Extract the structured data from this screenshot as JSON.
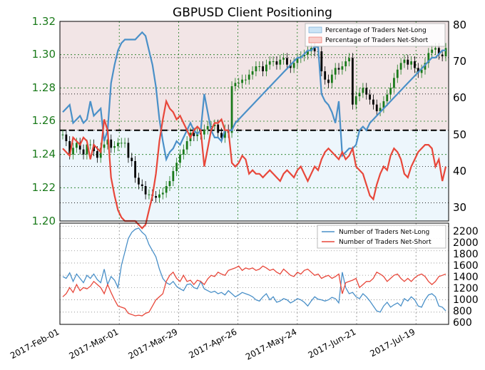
{
  "chart_data": [
    {
      "type": "line",
      "title": "GBPUSD Client Positioning",
      "left_axis": {
        "ticks": [
          "1.20",
          "1.22",
          "1.24",
          "1.26",
          "1.28",
          "1.30",
          "1.32"
        ],
        "ylim": [
          1.2,
          1.32
        ],
        "color": "#1a7a1a"
      },
      "right_axis": {
        "ticks": [
          "30",
          "40",
          "50",
          "60",
          "70",
          "80"
        ],
        "ylim": [
          25,
          80
        ]
      },
      "reference_line": 50,
      "background_split": 50,
      "grid": true,
      "legend": {
        "position": "top-right",
        "items": [
          "Percentage of Traders Net-Long",
          "Percentage of Traders Net-Short"
        ]
      },
      "colors": {
        "price_up": "#1a7a1a",
        "price_down": "#000000",
        "net_long": "#4a90c8",
        "net_short": "#e8473a",
        "long_fill": "#cce4f6",
        "short_fill": "#f9d0cc"
      },
      "price_close": [
        1.252,
        1.248,
        1.24,
        1.244,
        1.247,
        1.243,
        1.24,
        1.246,
        1.246,
        1.242,
        1.238,
        1.244,
        1.246,
        1.249,
        1.244,
        1.245,
        1.247,
        1.247,
        1.247,
        1.238,
        1.236,
        1.226,
        1.222,
        1.221,
        1.216,
        1.216,
        1.215,
        1.214,
        1.216,
        1.217,
        1.221,
        1.224,
        1.23,
        1.235,
        1.24,
        1.243,
        1.248,
        1.253,
        1.251,
        1.253,
        1.252,
        1.255,
        1.257,
        1.257,
        1.258,
        1.253,
        1.25,
        1.255,
        1.253,
        1.281,
        1.283,
        1.283,
        1.285,
        1.285,
        1.288,
        1.29,
        1.293,
        1.293,
        1.29,
        1.294,
        1.296,
        1.296,
        1.294,
        1.297,
        1.298,
        1.294,
        1.292,
        1.295,
        1.298,
        1.299,
        1.3,
        1.302,
        1.304,
        1.302,
        1.302,
        1.29,
        1.285,
        1.283,
        1.288,
        1.292,
        1.291,
        1.293,
        1.296,
        1.298,
        1.27,
        1.275,
        1.277,
        1.28,
        1.276,
        1.273,
        1.27,
        1.266,
        1.268,
        1.272,
        1.276,
        1.28,
        1.286,
        1.291,
        1.295,
        1.297,
        1.294,
        1.296,
        1.292,
        1.289,
        1.291,
        1.295,
        1.301,
        1.303,
        1.304,
        1.3,
        1.299,
        1.304
      ],
      "net_long_pct": [
        55,
        56,
        57,
        52,
        53,
        54,
        52,
        53,
        58,
        54,
        55,
        56,
        47,
        50,
        63,
        68,
        72,
        74,
        75,
        75,
        75,
        75,
        76,
        77,
        76,
        72,
        68,
        62,
        53,
        47,
        42,
        44,
        45,
        47,
        46,
        48,
        50,
        52,
        50,
        49,
        50,
        60,
        55,
        50,
        48,
        48,
        47,
        50,
        50,
        50,
        52,
        53,
        54,
        55,
        56,
        57,
        58,
        59,
        60,
        61,
        62,
        63,
        64,
        65,
        66,
        67,
        68,
        69,
        70,
        70,
        71,
        72,
        72,
        73,
        73,
        60,
        58,
        57,
        55,
        52,
        58,
        43,
        44,
        45,
        45,
        46,
        50,
        51,
        50,
        52,
        53,
        54,
        55,
        56,
        57,
        58,
        59,
        60,
        61,
        62,
        63,
        64,
        65,
        66,
        67,
        68,
        69,
        70,
        70,
        71,
        72,
        72
      ],
      "net_short_pct": [
        45,
        44,
        43,
        48,
        47,
        46,
        48,
        47,
        42,
        46,
        45,
        44,
        53,
        50,
        37,
        32,
        28,
        26,
        25,
        25,
        25,
        25,
        24,
        23,
        24,
        28,
        32,
        38,
        47,
        53,
        58,
        56,
        55,
        53,
        54,
        52,
        50,
        48,
        50,
        51,
        50,
        40,
        45,
        50,
        52,
        52,
        53,
        50,
        50,
        41,
        40,
        41,
        43,
        42,
        38,
        39,
        38,
        38,
        37,
        38,
        39,
        38,
        37,
        36,
        38,
        39,
        38,
        37,
        39,
        40,
        38,
        36,
        38,
        40,
        39,
        42,
        44,
        45,
        44,
        43,
        42,
        44,
        42,
        43,
        45,
        40,
        39,
        38,
        35,
        32,
        31,
        35,
        38,
        40,
        39,
        43,
        45,
        44,
        42,
        38,
        37,
        40,
        42,
        44,
        45,
        46,
        46,
        45,
        40,
        42,
        36,
        40
      ]
    },
    {
      "type": "line",
      "x_tick_labels": [
        "2017-Feb-01",
        "2017-Mar-01",
        "2017-Mar-29",
        "2017-Apr-26",
        "2017-May-24",
        "2017-Jun-21",
        "2017-Jul-19"
      ],
      "right_axis": {
        "ticks": [
          "600",
          "800",
          "1000",
          "1200",
          "1400",
          "1600",
          "1800",
          "2000",
          "2200"
        ],
        "ylim": [
          600,
          2250
        ]
      },
      "grid": true,
      "legend": {
        "position": "top-right",
        "items": [
          "Number of Traders Net-Long",
          "Number of Traders Net-Short"
        ]
      },
      "series": [
        {
          "name": "Number of Traders Net-Long",
          "color": "#4a90c8",
          "values": [
            1380,
            1350,
            1440,
            1300,
            1420,
            1350,
            1280,
            1400,
            1350,
            1420,
            1330,
            1280,
            1500,
            1250,
            1380,
            1320,
            1200,
            1560,
            1780,
            2000,
            2100,
            2150,
            2170,
            2100,
            2050,
            1900,
            1800,
            1700,
            1500,
            1350,
            1280,
            1250,
            1300,
            1220,
            1180,
            1150,
            1250,
            1260,
            1200,
            1180,
            1300,
            1180,
            1150,
            1120,
            1140,
            1100,
            1120,
            1080,
            1150,
            1100,
            1050,
            1080,
            1120,
            1100,
            1080,
            1050,
            1000,
            980,
            1050,
            1100,
            1000,
            1050,
            960,
            980,
            1020,
            1000,
            950,
            980,
            1020,
            1000,
            960,
            900,
            980,
            1050,
            1010,
            1000,
            980,
            1000,
            1040,
            1020,
            950,
            1450,
            1200,
            1100,
            1120,
            1050,
            1020,
            1100,
            1050,
            980,
            900,
            820,
            800,
            900,
            960,
            880,
            920,
            950,
            900,
            1020,
            980,
            1050,
            1000,
            900,
            880,
            1000,
            1080,
            1100,
            1050,
            900,
            880,
            820
          ]
        },
        {
          "name": "Number of Traders Net-Short",
          "color": "#e8473a",
          "values": [
            1050,
            1100,
            1200,
            1120,
            1250,
            1150,
            1200,
            1180,
            1220,
            1300,
            1250,
            1200,
            1100,
            1250,
            1120,
            1000,
            900,
            880,
            860,
            780,
            760,
            740,
            750,
            740,
            780,
            800,
            900,
            1000,
            1050,
            1100,
            1300,
            1400,
            1450,
            1350,
            1300,
            1400,
            1300,
            1320,
            1250,
            1320,
            1300,
            1250,
            1340,
            1400,
            1380,
            1450,
            1420,
            1400,
            1480,
            1500,
            1520,
            1550,
            1480,
            1520,
            1500,
            1520,
            1480,
            1500,
            1550,
            1520,
            1480,
            1500,
            1450,
            1420,
            1500,
            1450,
            1400,
            1380,
            1450,
            1420,
            1480,
            1500,
            1450,
            1400,
            1420,
            1350,
            1380,
            1400,
            1350,
            1380,
            1420,
            1100,
            1280,
            1300,
            1320,
            1350,
            1200,
            1250,
            1300,
            1300,
            1350,
            1450,
            1420,
            1380,
            1300,
            1350,
            1400,
            1420,
            1350,
            1300,
            1350,
            1300,
            1360,
            1400,
            1420,
            1380,
            1300,
            1250,
            1300,
            1380,
            1400,
            1420
          ]
        }
      ]
    }
  ]
}
